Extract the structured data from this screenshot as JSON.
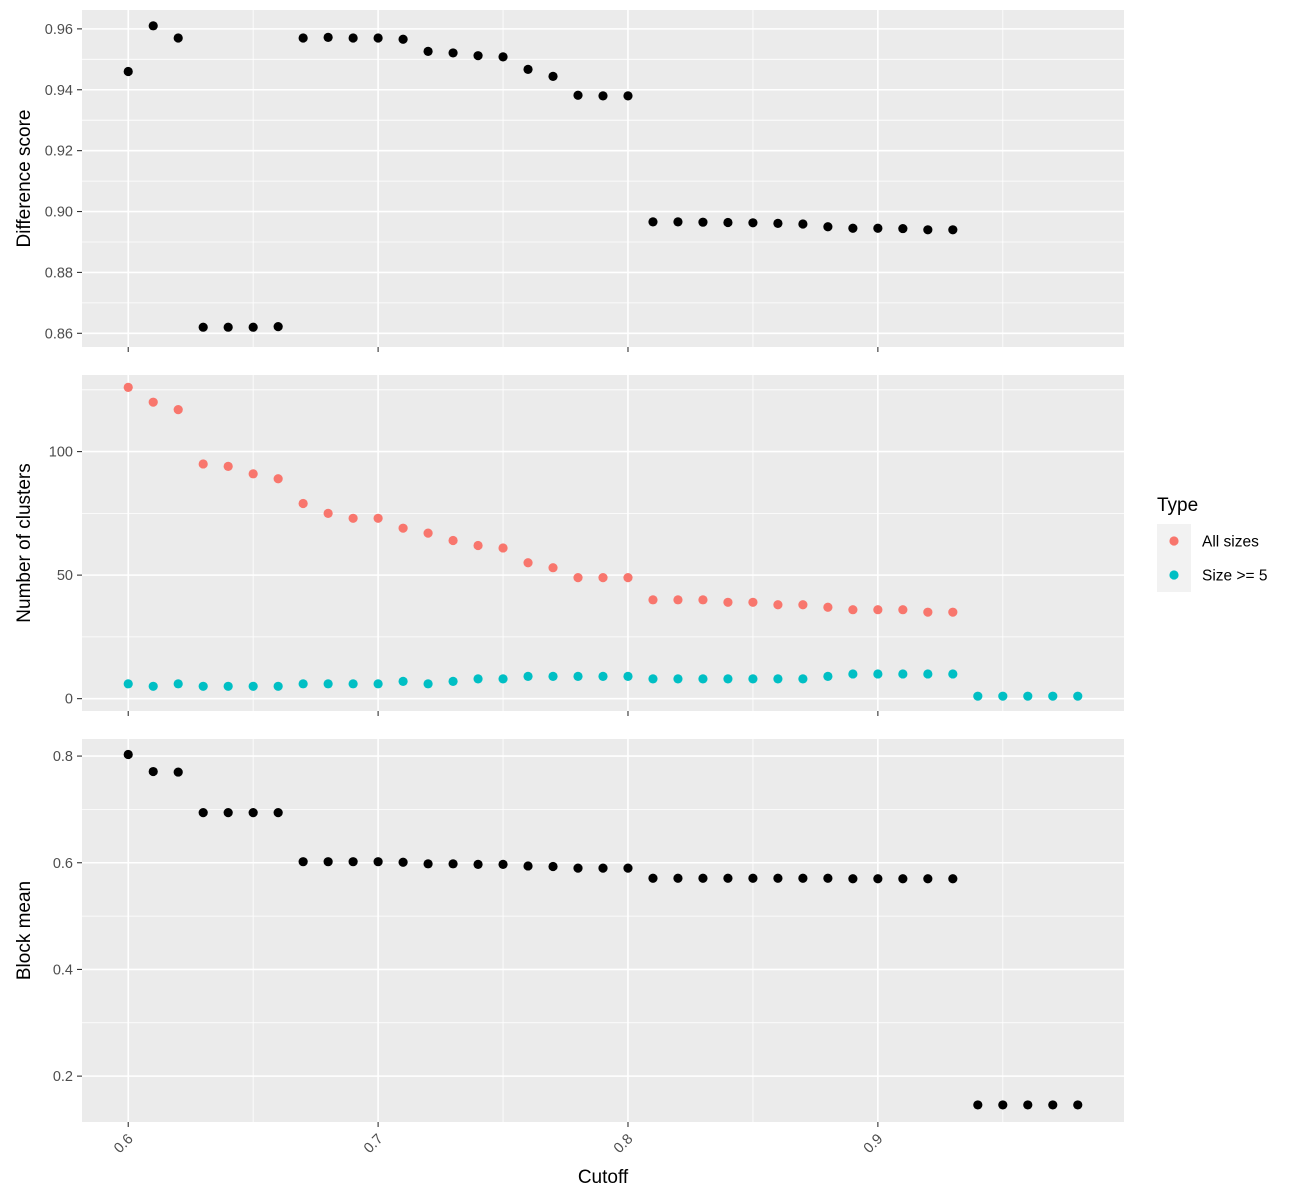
{
  "chart_data": {
    "type": "scatter",
    "x": [
      0.6,
      0.61,
      0.62,
      0.63,
      0.64,
      0.65,
      0.66,
      0.67,
      0.68,
      0.69,
      0.7,
      0.71,
      0.72,
      0.73,
      0.74,
      0.75,
      0.76,
      0.77,
      0.78,
      0.79,
      0.8,
      0.81,
      0.82,
      0.83,
      0.84,
      0.85,
      0.86,
      0.87,
      0.88,
      0.89,
      0.9,
      0.91,
      0.92,
      0.93,
      0.94,
      0.95,
      0.96,
      0.97,
      0.98
    ],
    "xlabel": "Cutoff",
    "xlim": [
      0.5815,
      0.9985
    ],
    "xticks": [
      0.6,
      0.7,
      0.8,
      0.9
    ],
    "xtick_labels": [
      "0.6",
      "0.7",
      "0.8",
      "0.9"
    ],
    "xtick_rotation": 45,
    "grid": true,
    "facets": [
      {
        "ylabel": "Difference score",
        "ylim": [
          0.8555,
          0.9662
        ],
        "yticks": [
          0.86,
          0.88,
          0.9,
          0.92,
          0.94,
          0.96
        ],
        "ytick_labels": [
          "0.86",
          "0.88",
          "0.90",
          "0.92",
          "0.94",
          "0.96"
        ],
        "series": [
          {
            "values": [
              0.946,
              0.961,
              0.957,
              0.862,
              0.862,
              0.862,
              0.8622,
              0.957,
              0.9572,
              0.957,
              0.957,
              0.9566,
              0.9526,
              0.9521,
              0.9512,
              0.9508,
              0.9467,
              0.9444,
              0.9382,
              0.938,
              0.938,
              0.8966,
              0.8966,
              0.8965,
              0.8964,
              0.8963,
              0.8961,
              0.8959,
              0.895,
              0.8945,
              0.8945,
              0.8944,
              0.894,
              0.894,
              null,
              null,
              null,
              null,
              null
            ],
            "color": "#000000"
          }
        ]
      },
      {
        "ylabel": "Number of clusters",
        "ylim": [
          -5,
          131
        ],
        "yticks": [
          0,
          50,
          100
        ],
        "ytick_labels": [
          "0",
          "50",
          "100"
        ],
        "series": [
          {
            "name": "All sizes",
            "color": "#F8766D",
            "values": [
              126,
              120,
              117,
              95,
              94,
              91,
              89,
              79,
              75,
              73,
              73,
              69,
              67,
              64,
              62,
              61,
              55,
              53,
              49,
              49,
              49,
              40,
              40,
              40,
              39,
              39,
              38,
              38,
              37,
              36,
              36,
              36,
              35,
              35,
              null,
              null,
              null,
              null,
              null
            ]
          },
          {
            "name": "Size >= 5",
            "color": "#00BFC4",
            "values": [
              6,
              5,
              6,
              5,
              5,
              5,
              5,
              6,
              6,
              6,
              6,
              7,
              6,
              7,
              8,
              8,
              9,
              9,
              9,
              9,
              9,
              8,
              8,
              8,
              8,
              8,
              8,
              8,
              9,
              10,
              10,
              10,
              10,
              10,
              1,
              1,
              1,
              1,
              1
            ]
          }
        ]
      },
      {
        "ylabel": "Block mean",
        "ylim": [
          0.114,
          0.832
        ],
        "yticks": [
          0.2,
          0.4,
          0.6,
          0.8
        ],
        "ytick_labels": [
          "0.2",
          "0.4",
          "0.6",
          "0.8"
        ],
        "series": [
          {
            "values": [
              0.803,
              0.771,
              0.77,
              0.694,
              0.694,
              0.694,
              0.694,
              0.602,
              0.602,
              0.602,
              0.602,
              0.601,
              0.598,
              0.598,
              0.597,
              0.597,
              0.594,
              0.593,
              0.59,
              0.59,
              0.59,
              0.571,
              0.571,
              0.571,
              0.571,
              0.571,
              0.571,
              0.571,
              0.571,
              0.57,
              0.57,
              0.57,
              0.57,
              0.57,
              0.146,
              0.146,
              0.146,
              0.146,
              0.146
            ],
            "color": "#000000"
          }
        ]
      }
    ],
    "legend": {
      "title": "Type",
      "position": "right",
      "entries": [
        {
          "label": "All sizes",
          "color": "#F8766D"
        },
        {
          "label": "Size >= 5",
          "color": "#00BFC4"
        }
      ]
    }
  }
}
